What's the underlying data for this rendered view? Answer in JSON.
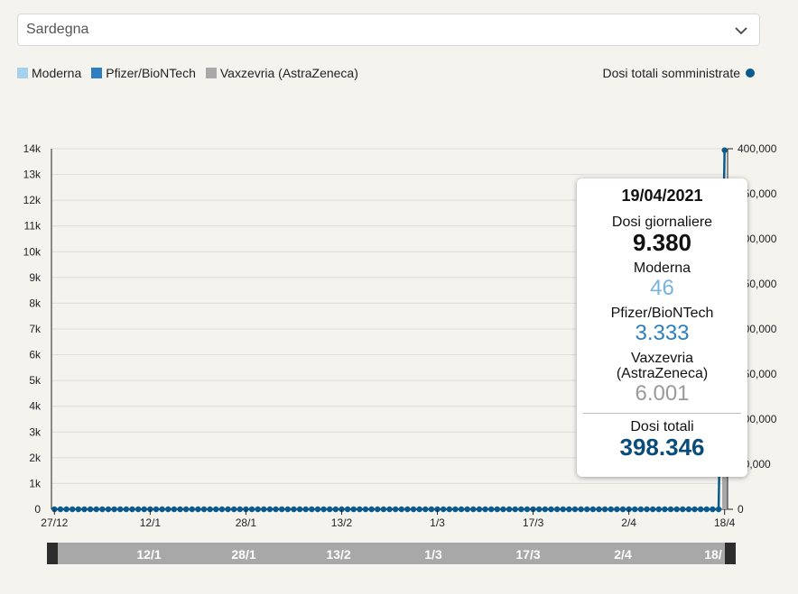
{
  "region_select": {
    "value": "Sardegna",
    "icon": "chevron-down-icon"
  },
  "legend": {
    "items": [
      {
        "label": "Moderna",
        "color": "#a6d1ee"
      },
      {
        "label": "Pfizer/BioNTech",
        "color": "#2e7fbf"
      },
      {
        "label": "Vaxzevria (AstraZeneca)",
        "color": "#a9a9a9"
      }
    ],
    "line_label": "Dosi totali somministrate",
    "line_color": "#0b5a8c"
  },
  "chart_data": {
    "type": "bar",
    "stacked": true,
    "x_start": "2020-12-27",
    "x_end": "2021-04-19",
    "x_tick_labels": [
      "27/12",
      "12/1",
      "28/1",
      "13/2",
      "1/3",
      "17/3",
      "2/4",
      "18/4"
    ],
    "y_ticks": [
      "0",
      "1k",
      "2k",
      "3k",
      "4k",
      "5k",
      "6k",
      "7k",
      "8k",
      "9k",
      "10k",
      "11k",
      "12k",
      "13k",
      "14k"
    ],
    "ylim": [
      0,
      14000
    ],
    "y2_ticks": [
      "0",
      "50,000",
      "100,000",
      "150,000",
      "200,000",
      "250,000",
      "300,000",
      "350,000",
      "400,000"
    ],
    "y2lim": [
      0,
      400000
    ],
    "grid": true,
    "series": [
      {
        "name": "Moderna",
        "color": "#a6d1ee",
        "values": [
          0,
          0,
          0,
          0,
          0,
          0,
          0,
          0,
          0,
          0,
          0,
          0,
          0,
          0,
          0,
          0,
          0,
          0,
          0,
          0,
          0,
          0,
          0,
          0,
          0,
          0,
          0,
          0,
          0,
          0,
          0,
          0,
          0,
          0,
          0,
          0,
          0,
          0,
          0,
          0,
          0,
          0,
          0,
          0,
          0,
          0,
          0,
          0,
          0,
          0,
          0,
          0,
          0,
          0,
          0,
          0,
          0,
          0,
          0,
          0,
          0,
          0,
          0,
          0,
          0,
          0,
          0,
          0,
          0,
          0,
          0,
          0,
          0,
          0,
          0,
          0,
          0,
          0,
          0,
          0,
          0,
          0,
          0,
          0,
          0,
          0,
          0,
          0,
          0,
          0,
          0,
          0,
          0,
          0,
          0,
          0,
          0,
          0,
          0,
          0,
          0,
          0,
          0,
          0,
          0,
          0,
          0,
          0,
          0,
          0,
          0,
          0,
          46
        ]
      },
      {
        "name": "Pfizer/BioNTech",
        "color": "#2e7fbf",
        "values": [
          0,
          0,
          0,
          0,
          0,
          0,
          0,
          0,
          0,
          0,
          0,
          0,
          0,
          0,
          0,
          0,
          0,
          0,
          0,
          0,
          0,
          0,
          0,
          0,
          0,
          0,
          0,
          0,
          0,
          0,
          0,
          0,
          0,
          0,
          0,
          0,
          0,
          0,
          0,
          0,
          0,
          0,
          0,
          0,
          0,
          0,
          0,
          0,
          0,
          0,
          0,
          0,
          0,
          0,
          0,
          0,
          0,
          0,
          0,
          0,
          0,
          0,
          0,
          0,
          0,
          0,
          0,
          0,
          0,
          0,
          0,
          0,
          0,
          0,
          0,
          0,
          0,
          0,
          0,
          0,
          0,
          0,
          0,
          0,
          0,
          0,
          0,
          0,
          0,
          0,
          0,
          0,
          0,
          0,
          0,
          0,
          0,
          0,
          0,
          0,
          0,
          0,
          0,
          0,
          0,
          0,
          0,
          0,
          0,
          0,
          0,
          0,
          3333
        ]
      },
      {
        "name": "Vaxzevria (AstraZeneca)",
        "color": "#a9a9a9",
        "values": [
          0,
          0,
          0,
          0,
          0,
          0,
          0,
          0,
          0,
          0,
          0,
          0,
          0,
          0,
          0,
          0,
          0,
          0,
          0,
          0,
          0,
          0,
          0,
          0,
          0,
          0,
          0,
          0,
          0,
          0,
          0,
          0,
          0,
          0,
          0,
          0,
          0,
          0,
          0,
          0,
          0,
          0,
          0,
          0,
          0,
          0,
          0,
          0,
          0,
          0,
          0,
          0,
          0,
          0,
          0,
          0,
          0,
          0,
          0,
          0,
          0,
          0,
          0,
          0,
          0,
          0,
          0,
          0,
          0,
          0,
          0,
          0,
          0,
          0,
          0,
          0,
          0,
          0,
          0,
          0,
          0,
          0,
          0,
          0,
          0,
          0,
          0,
          0,
          0,
          0,
          0,
          0,
          0,
          0,
          0,
          0,
          0,
          0,
          0,
          0,
          0,
          0,
          0,
          0,
          0,
          0,
          0,
          0,
          0,
          0,
          0,
          0,
          6001
        ]
      }
    ],
    "line": {
      "name": "Dosi totali somministrate",
      "color": "#0b5a8c",
      "values": [
        0,
        0,
        0,
        0,
        0,
        0,
        0,
        0,
        0,
        0,
        0,
        0,
        0,
        0,
        0,
        0,
        0,
        0,
        0,
        0,
        0,
        0,
        0,
        0,
        0,
        0,
        0,
        0,
        0,
        0,
        0,
        0,
        0,
        0,
        0,
        0,
        0,
        0,
        0,
        0,
        0,
        0,
        0,
        0,
        0,
        0,
        0,
        0,
        0,
        0,
        0,
        0,
        0,
        0,
        0,
        0,
        0,
        0,
        0,
        0,
        0,
        0,
        0,
        0,
        0,
        0,
        0,
        0,
        0,
        0,
        0,
        0,
        0,
        0,
        0,
        0,
        0,
        0,
        0,
        0,
        0,
        0,
        0,
        0,
        0,
        0,
        0,
        0,
        0,
        0,
        0,
        0,
        0,
        0,
        0,
        0,
        0,
        0,
        0,
        0,
        0,
        0,
        0,
        0,
        0,
        0,
        0,
        0,
        0,
        0,
        0,
        0,
        398346
      ]
    },
    "_moderna": [
      0,
      0,
      0,
      0,
      0,
      0,
      0,
      0,
      0,
      0,
      0,
      0,
      0,
      0,
      0,
      0,
      0,
      0,
      0,
      0,
      0,
      0,
      0,
      0,
      0,
      0,
      0,
      0,
      0,
      0,
      0,
      0,
      0,
      0,
      0,
      0,
      0,
      0,
      0,
      0,
      0,
      0,
      0,
      0,
      0,
      0,
      0,
      0,
      0,
      0,
      0,
      0,
      0,
      0,
      0,
      0,
      0,
      0,
      0,
      0,
      0,
      0,
      0,
      0,
      0,
      0,
      0,
      0,
      0,
      0,
      0,
      0,
      0,
      0,
      0,
      0,
      0,
      0,
      0,
      0,
      0,
      0,
      0,
      0,
      0,
      0,
      0,
      0,
      0,
      0,
      0,
      0,
      0,
      0,
      0,
      0,
      0,
      0,
      0,
      0,
      0,
      0,
      0,
      0,
      0,
      0,
      0,
      0,
      0,
      0,
      0,
      0,
      46
    ]
  },
  "brush": {
    "labels": [
      "12/1",
      "28/1",
      "13/2",
      "1/3",
      "17/3",
      "2/4",
      "18/"
    ]
  },
  "tooltip": {
    "date": "19/04/2021",
    "daily_label": "Dosi giornaliere",
    "daily_value": "9.380",
    "moderna_label": "Moderna",
    "moderna_value": "46",
    "pfizer_label": "Pfizer/BioNTech",
    "pfizer_value": "3.333",
    "az_label_1": "Vaxzevria",
    "az_label_2": "(AstraZeneca)",
    "az_value": "6.001",
    "total_label": "Dosi totali",
    "total_value": "398.346"
  }
}
